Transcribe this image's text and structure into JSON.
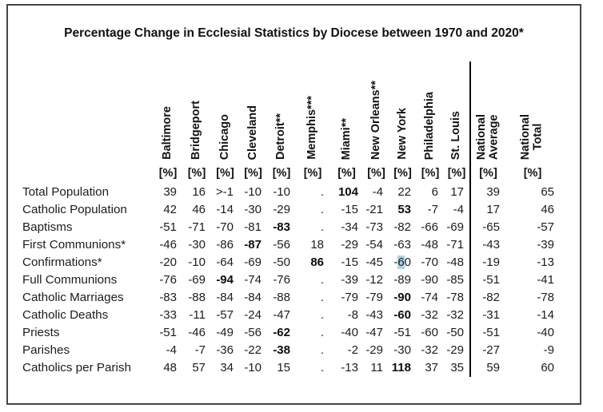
{
  "title": "Percentage Change in Ecclesial Statistics by Diocese between 1970 and 2020*",
  "chart_data": {
    "type": "table",
    "title": "Percentage Change in Ecclesial Statistics by Diocese between 1970 and 2020*",
    "unit_label": "[%]",
    "missing_value_symbol": ".",
    "summary_start_index": 11,
    "columns": [
      "Baltimore",
      "Bridgeport",
      "Chicago",
      "Cleveland",
      "Detroit**",
      "Memphis***",
      "Miami**",
      "New Orleans**",
      "New York",
      "Philadelphia",
      "St. Louis",
      "National\nAverage",
      "National\nTotal"
    ],
    "rows": [
      {
        "label": "Total Population",
        "values": [
          "39",
          "16",
          ">-1",
          "-10",
          "-10",
          ".",
          "104",
          "-4",
          "22",
          "6",
          "17",
          "39",
          "65"
        ],
        "bold_indices": [
          6
        ]
      },
      {
        "label": "Catholic Population",
        "values": [
          "42",
          "46",
          "-14",
          "-30",
          "-29",
          ".",
          "-15",
          "-21",
          "53",
          "-7",
          "-4",
          "17",
          "46"
        ],
        "bold_indices": [
          8
        ]
      },
      {
        "label": "Baptisms",
        "values": [
          "-51",
          "-71",
          "-70",
          "-81",
          "-83",
          ".",
          "-34",
          "-73",
          "-82",
          "-66",
          "-69",
          "-65",
          "-57"
        ],
        "bold_indices": [
          4
        ]
      },
      {
        "label": "First Communions*",
        "values": [
          "-46",
          "-30",
          "-86",
          "-87",
          "-56",
          "18",
          "-29",
          "-54",
          "-63",
          "-48",
          "-71",
          "-43",
          "-39"
        ],
        "bold_indices": [
          3
        ]
      },
      {
        "label": "Confirmations*",
        "values": [
          "-20",
          "-10",
          "-64",
          "-69",
          "-50",
          "86",
          "-15",
          "-45",
          "-60",
          "-70",
          "-48",
          "-19",
          "-13"
        ],
        "bold_indices": [
          5
        ],
        "highlight": {
          "col_index": 8,
          "char_index": 1
        }
      },
      {
        "label": "Full Communions",
        "values": [
          "-76",
          "-69",
          "-94",
          "-74",
          "-76",
          ".",
          "-39",
          "-12",
          "-89",
          "-90",
          "-85",
          "-51",
          "-41"
        ],
        "bold_indices": [
          2
        ]
      },
      {
        "label": "Catholic Marriages",
        "values": [
          "-83",
          "-88",
          "-84",
          "-84",
          "-88",
          ".",
          "-79",
          "-79",
          "-90",
          "-74",
          "-78",
          "-82",
          "-78"
        ],
        "bold_indices": [
          8
        ]
      },
      {
        "label": "Catholic Deaths",
        "values": [
          "-33",
          "-11",
          "-57",
          "-24",
          "-47",
          ".",
          "-8",
          "-43",
          "-60",
          "-32",
          "-32",
          "-31",
          "-14"
        ],
        "bold_indices": [
          8
        ]
      },
      {
        "label": "Priests",
        "values": [
          "-51",
          "-46",
          "-49",
          "-56",
          "-62",
          ".",
          "-40",
          "-47",
          "-51",
          "-60",
          "-50",
          "-51",
          "-40"
        ],
        "bold_indices": [
          4
        ]
      },
      {
        "label": "Parishes",
        "values": [
          "-4",
          "-7",
          "-36",
          "-22",
          "-38",
          ".",
          "-2",
          "-29",
          "-30",
          "-32",
          "-29",
          "-27",
          "-9"
        ],
        "bold_indices": [
          4
        ]
      },
      {
        "label": "Catholics per Parish",
        "values": [
          "48",
          "57",
          "34",
          "-10",
          "15",
          ".",
          "-13",
          "11",
          "118",
          "37",
          "35",
          "59",
          "60"
        ],
        "bold_indices": [
          8
        ]
      }
    ],
    "colors": {
      "text": "#1c1c1c",
      "selection_highlight": "#aed1e6",
      "frame_border": "#454545",
      "divider": "#000000"
    }
  }
}
